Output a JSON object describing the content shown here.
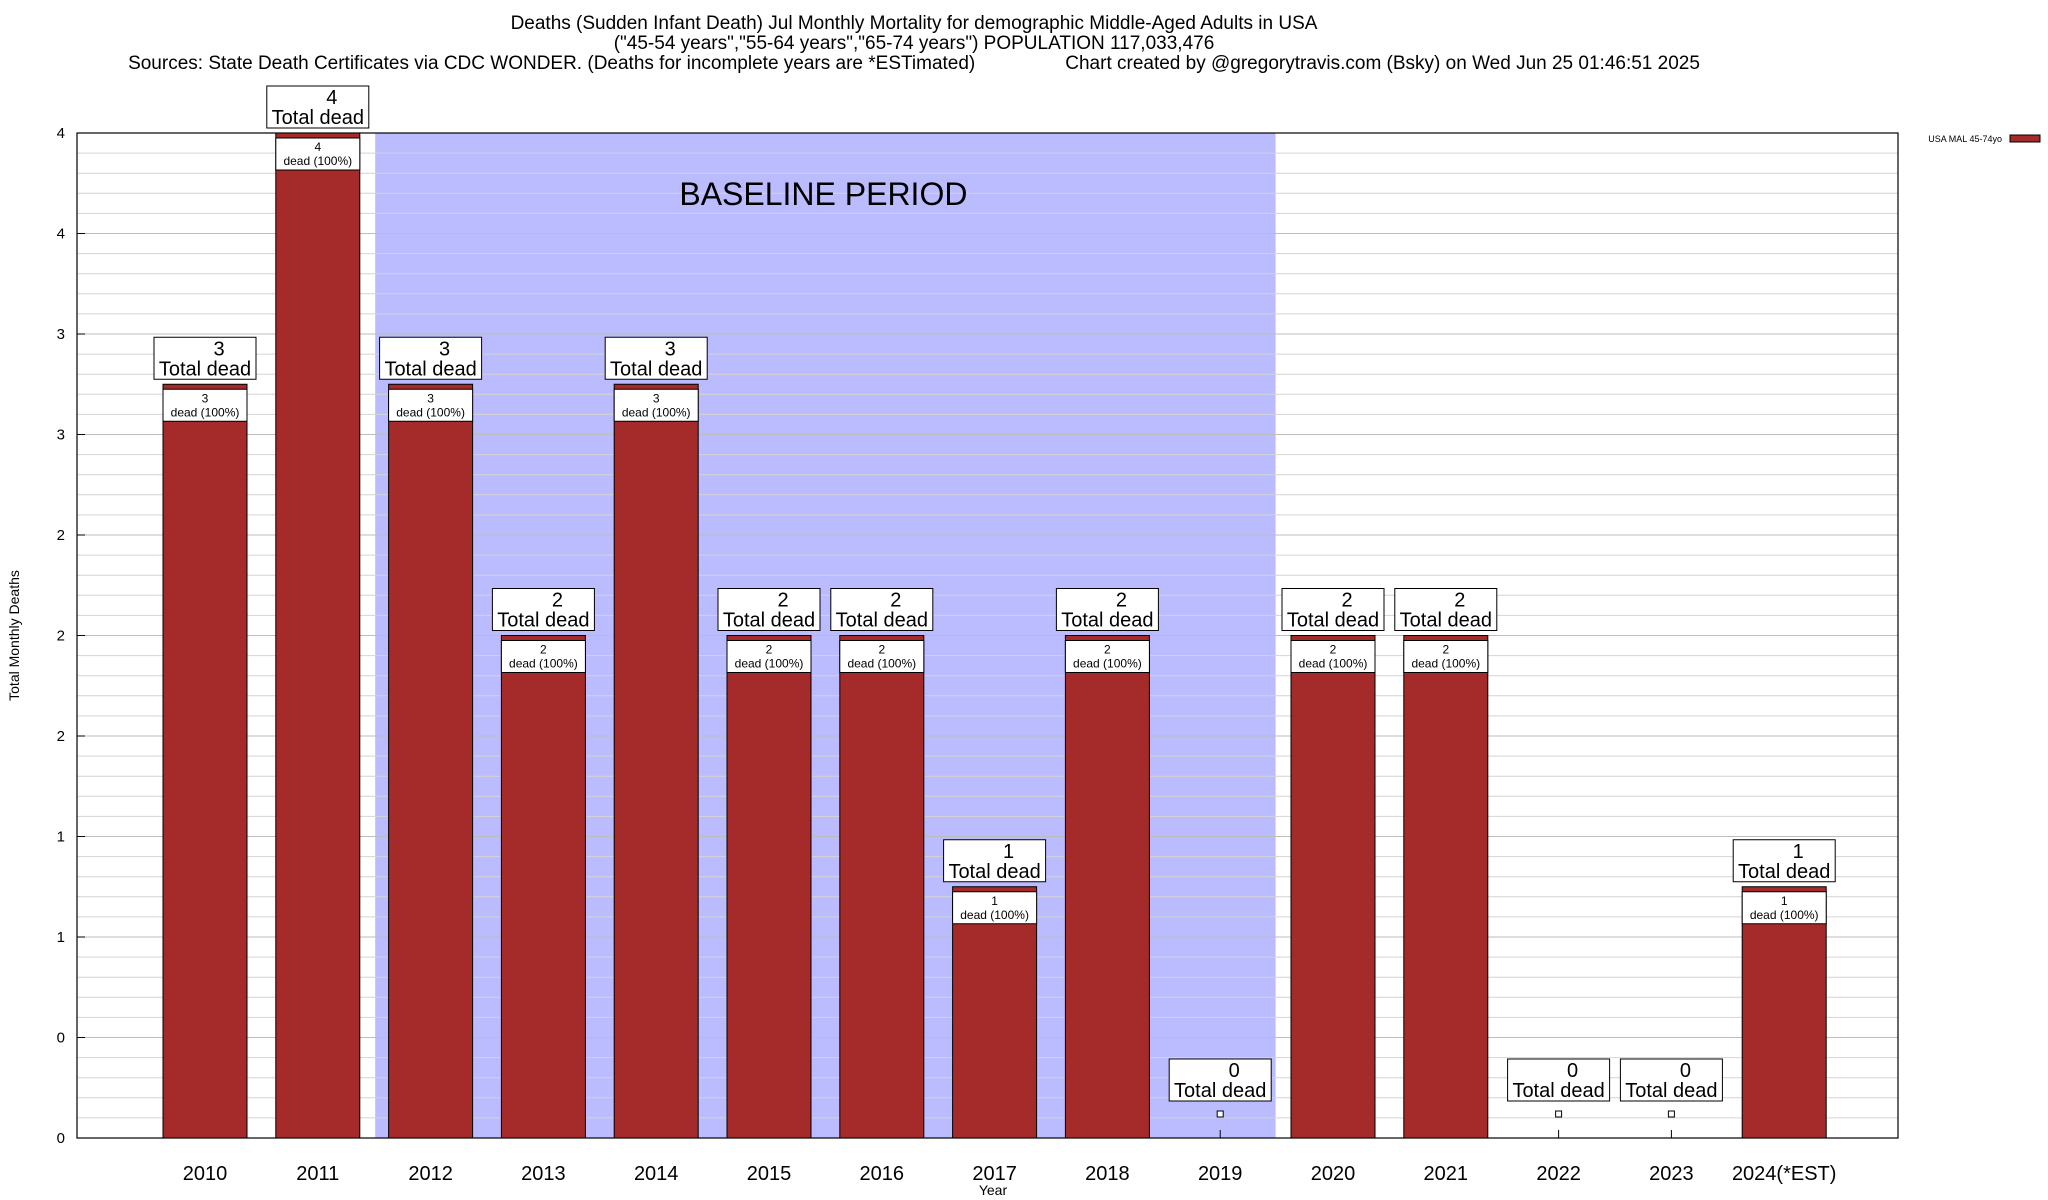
{
  "chart_data": {
    "type": "bar",
    "title": "Deaths (Sudden Infant Death) Jul Monthly Mortality for demographic Middle-Aged Adults in USA",
    "subtitle": "(\"45-54 years\",\"55-64 years\",\"65-74 years\") POPULATION 117,033,476",
    "sources": "Sources: State Death Certificates via CDC WONDER. (Deaths for incomplete years are *ESTimated)",
    "credit": "Chart created by @gregorytravis.com (Bsky) on Wed Jun 25 01:46:51 2025",
    "xlabel": "Year",
    "ylabel": "Total Monthly Deaths",
    "categories": [
      "2010",
      "2011",
      "2012",
      "2013",
      "2014",
      "2015",
      "2016",
      "2017",
      "2018",
      "2019",
      "2020",
      "2021",
      "2022",
      "2023",
      "2024(*EST)"
    ],
    "series": [
      {
        "name": "USA MAL 45-74yo",
        "color": "#a52a2a",
        "values": [
          3,
          4,
          3,
          2,
          3,
          2,
          2,
          1,
          2,
          0,
          2,
          2,
          0,
          0,
          1
        ]
      }
    ],
    "ylim": [
      0,
      4
    ],
    "y_tick_labels": [
      "0",
      "0",
      "1",
      "1",
      "2",
      "2",
      "2",
      "3",
      "3",
      "4",
      "4"
    ],
    "total_label_suffix": "Total dead",
    "inner_label_suffix": "dead (100%)",
    "baseline_period": {
      "label": "BASELINE PERIOD",
      "from_category": "2012",
      "to_category": "2019",
      "color": "#bbbbff"
    },
    "grid": true,
    "legend_position": "top-right"
  }
}
